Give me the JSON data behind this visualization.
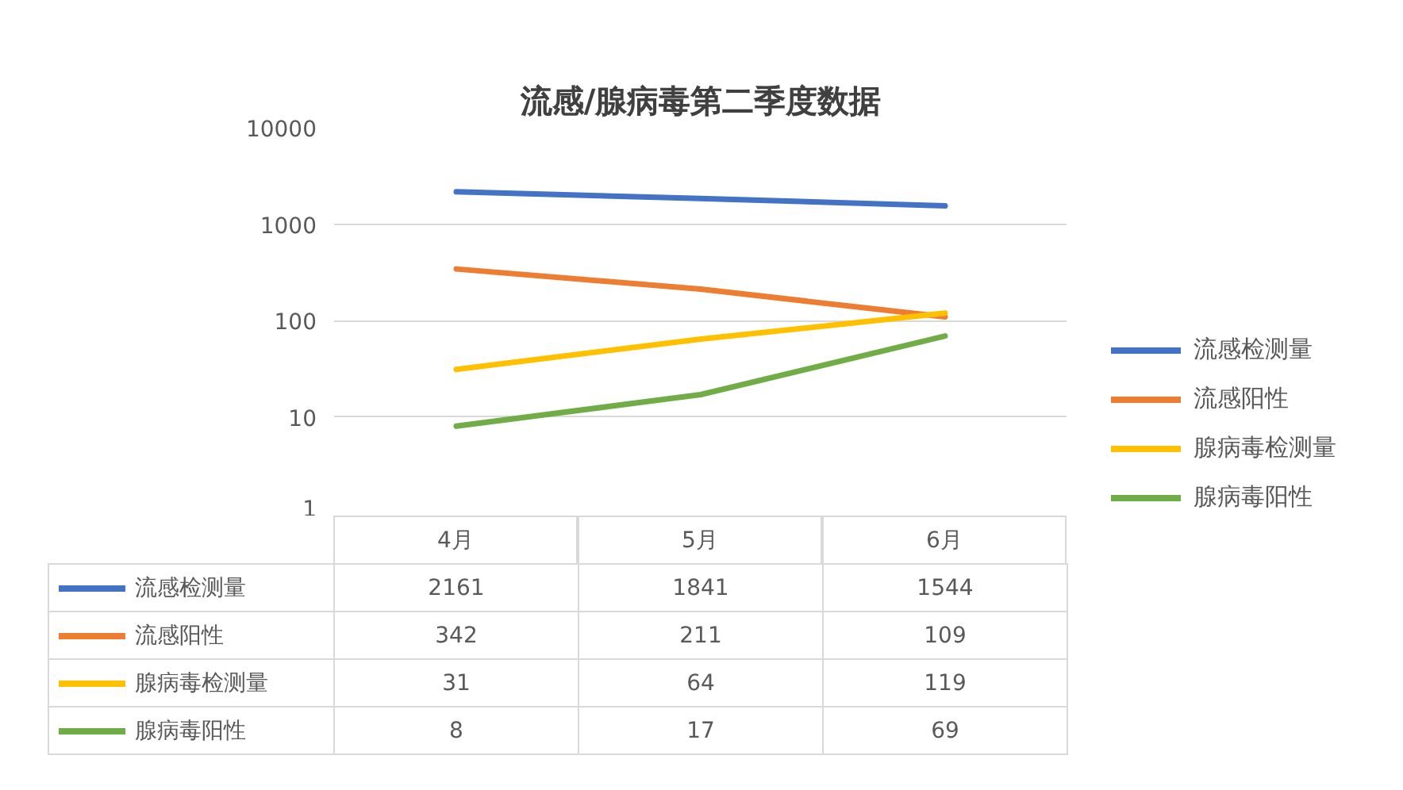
{
  "chart_data": {
    "type": "line",
    "title": "流感/腺病毒第二季度数据",
    "categories": [
      "4月",
      "5月",
      "6月"
    ],
    "series": [
      {
        "name": "流感检测量",
        "color": "#4472c4",
        "values": [
          2161,
          1841,
          1544
        ]
      },
      {
        "name": "流感阳性",
        "color": "#ed7d31",
        "values": [
          342,
          211,
          109
        ]
      },
      {
        "name": "腺病毒检测量",
        "color": "#ffc000",
        "values": [
          31,
          64,
          119
        ]
      },
      {
        "name": "腺病毒阳性",
        "color": "#70ad47",
        "values": [
          8,
          17,
          69
        ]
      }
    ],
    "log": true,
    "ylim": [
      1,
      10000
    ],
    "yticks": [
      1,
      10,
      100,
      1000,
      10000
    ],
    "grid": "y",
    "legend": "right",
    "data_labels": true,
    "marker": "none",
    "line_style": "solid"
  }
}
